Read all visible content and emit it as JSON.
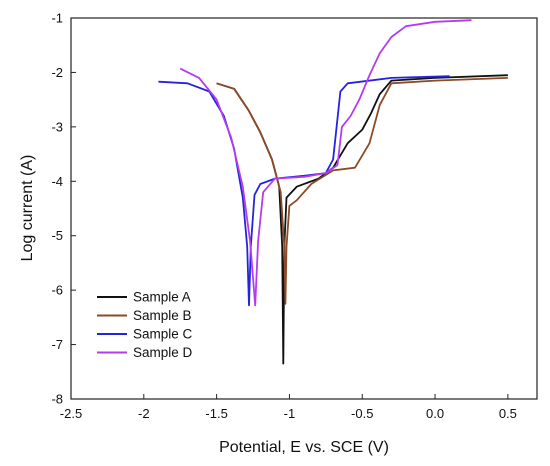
{
  "chart_data": {
    "type": "line",
    "xlabel": "Potential, E vs. SCE (V)",
    "ylabel": "Log current (A)",
    "xlim": [
      -2.5,
      0.7
    ],
    "ylim": [
      -8,
      -1
    ],
    "x_ticks": [
      -2.5,
      -2,
      -1.5,
      -1,
      -0.5,
      0,
      0.5
    ],
    "x_tick_labels": [
      "-2.5",
      "-2",
      "-1.5",
      "-1",
      "-0.5",
      "0.0",
      "0.5"
    ],
    "y_ticks": [
      -8,
      -7,
      -6,
      -5,
      -4,
      -3,
      -2,
      -1
    ],
    "y_tick_labels": [
      "-8",
      "-7",
      "-6",
      "-5",
      "-4",
      "-3",
      "-2",
      "-1"
    ],
    "legend_position": "bottom-left",
    "series": [
      {
        "name": "Sample A",
        "color": "#111111",
        "points": [
          [
            -1.5,
            -2.2
          ],
          [
            -1.38,
            -2.3
          ],
          [
            -1.28,
            -2.7
          ],
          [
            -1.2,
            -3.1
          ],
          [
            -1.12,
            -3.6
          ],
          [
            -1.07,
            -4.1
          ],
          [
            -1.05,
            -5.2
          ],
          [
            -1.042,
            -7.35
          ],
          [
            -1.035,
            -5.2
          ],
          [
            -1.02,
            -4.3
          ],
          [
            -0.95,
            -4.1
          ],
          [
            -0.8,
            -3.95
          ],
          [
            -0.7,
            -3.75
          ],
          [
            -0.6,
            -3.3
          ],
          [
            -0.5,
            -3.05
          ],
          [
            -0.44,
            -2.75
          ],
          [
            -0.38,
            -2.4
          ],
          [
            -0.3,
            -2.15
          ],
          [
            0,
            -2.1
          ],
          [
            0.5,
            -2.05
          ]
        ]
      },
      {
        "name": "Sample B",
        "color": "#8b4a28",
        "points": [
          [
            -1.5,
            -2.2
          ],
          [
            -1.38,
            -2.3
          ],
          [
            -1.28,
            -2.7
          ],
          [
            -1.2,
            -3.1
          ],
          [
            -1.12,
            -3.6
          ],
          [
            -1.06,
            -4.2
          ],
          [
            -1.035,
            -5.2
          ],
          [
            -1.028,
            -6.25
          ],
          [
            -1.02,
            -5.2
          ],
          [
            -1.0,
            -4.45
          ],
          [
            -0.95,
            -4.35
          ],
          [
            -0.85,
            -4.05
          ],
          [
            -0.7,
            -3.8
          ],
          [
            -0.55,
            -3.75
          ],
          [
            -0.45,
            -3.3
          ],
          [
            -0.38,
            -2.6
          ],
          [
            -0.3,
            -2.2
          ],
          [
            0,
            -2.15
          ],
          [
            0.5,
            -2.1
          ]
        ]
      },
      {
        "name": "Sample C",
        "color": "#2424e0",
        "points": [
          [
            -1.9,
            -2.17
          ],
          [
            -1.7,
            -2.2
          ],
          [
            -1.55,
            -2.35
          ],
          [
            -1.45,
            -2.8
          ],
          [
            -1.38,
            -3.4
          ],
          [
            -1.32,
            -4.3
          ],
          [
            -1.29,
            -5.2
          ],
          [
            -1.278,
            -6.28
          ],
          [
            -1.265,
            -5.2
          ],
          [
            -1.24,
            -4.25
          ],
          [
            -1.2,
            -4.05
          ],
          [
            -1.1,
            -3.95
          ],
          [
            -0.9,
            -3.9
          ],
          [
            -0.75,
            -3.85
          ],
          [
            -0.7,
            -3.6
          ],
          [
            -0.65,
            -2.35
          ],
          [
            -0.6,
            -2.2
          ],
          [
            -0.3,
            -2.1
          ],
          [
            0.1,
            -2.07
          ]
        ]
      },
      {
        "name": "Sample D",
        "color": "#b43cf0",
        "points": [
          [
            -1.75,
            -1.93
          ],
          [
            -1.62,
            -2.1
          ],
          [
            -1.5,
            -2.5
          ],
          [
            -1.4,
            -3.2
          ],
          [
            -1.32,
            -4.1
          ],
          [
            -1.27,
            -5.1
          ],
          [
            -1.235,
            -6.28
          ],
          [
            -1.215,
            -5.1
          ],
          [
            -1.18,
            -4.2
          ],
          [
            -1.1,
            -3.95
          ],
          [
            -0.9,
            -3.92
          ],
          [
            -0.75,
            -3.85
          ],
          [
            -0.67,
            -3.7
          ],
          [
            -0.64,
            -3.0
          ],
          [
            -0.58,
            -2.8
          ],
          [
            -0.52,
            -2.5
          ],
          [
            -0.45,
            -2.05
          ],
          [
            -0.38,
            -1.65
          ],
          [
            -0.3,
            -1.35
          ],
          [
            -0.2,
            -1.15
          ],
          [
            0.0,
            -1.07
          ],
          [
            0.25,
            -1.04
          ]
        ]
      }
    ]
  }
}
